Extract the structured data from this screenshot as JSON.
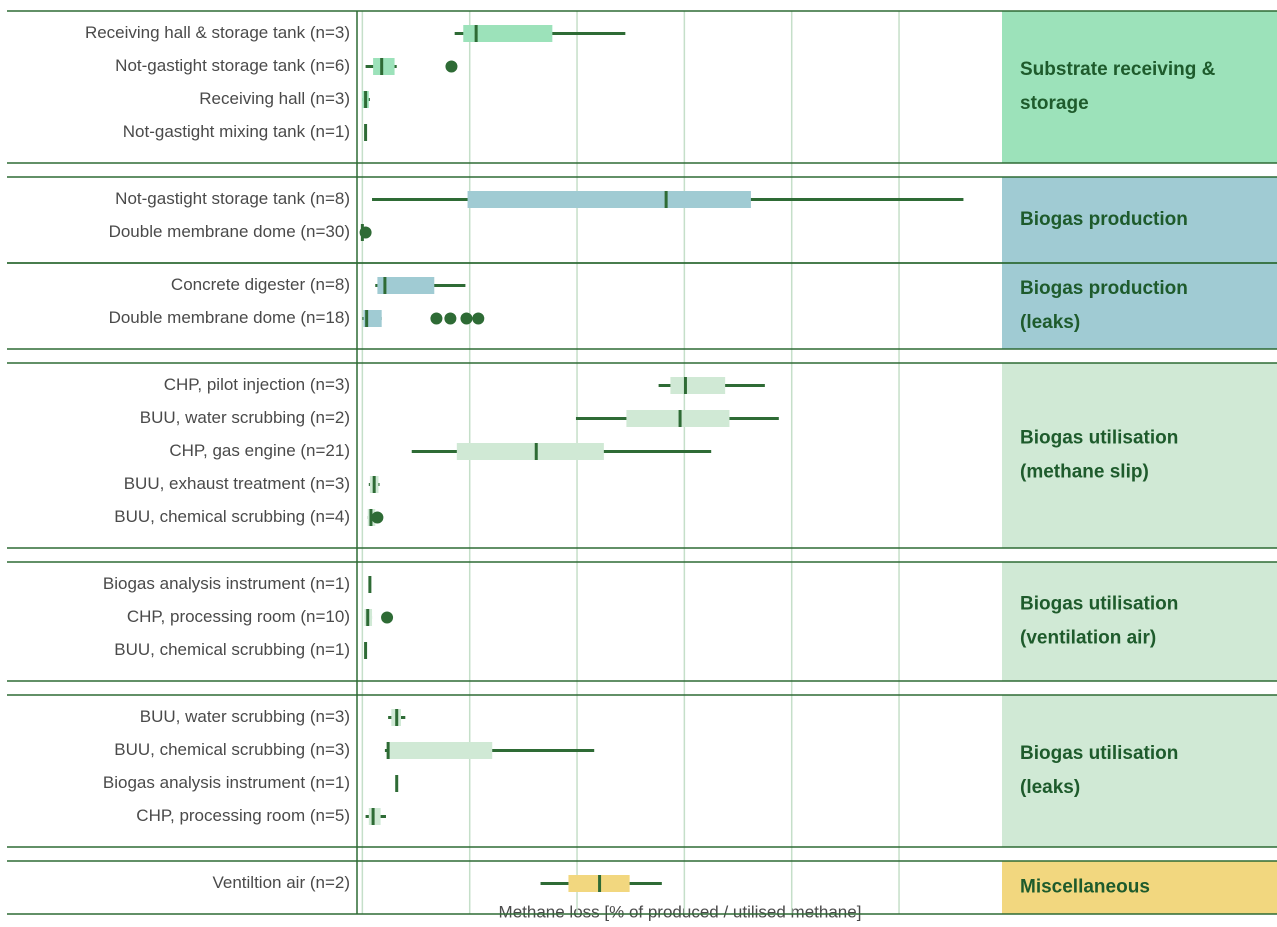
{
  "chart_data": {
    "type": "box",
    "xlabel": "Methane loss [% of produced / utilised methane]",
    "xlim": [
      -0.05,
      5.95
    ],
    "xticks": [
      0,
      1,
      2,
      3,
      4,
      5
    ],
    "grid": true,
    "line_color": "#2e6b35",
    "groups": [
      {
        "label_lines": [
          "Substrate receiving &",
          "storage"
        ],
        "color": "#9ce2ba",
        "rows": [
          {
            "label": "Receiving hall & storage tank (n=3)",
            "stats": [
              0.86,
              0.94,
              1.06,
              1.77,
              2.45
            ],
            "fliers": []
          },
          {
            "label": "Not-gastight storage tank (n=6)",
            "stats": [
              0.03,
              0.1,
              0.18,
              0.3,
              0.32
            ],
            "fliers": [
              0.83
            ]
          },
          {
            "label": "Receiving hall (n=3)",
            "stats": [
              0,
              0,
              0.03,
              0.06,
              0.07
            ],
            "fliers": []
          },
          {
            "label": "Not-gastight mixing tank (n=1)",
            "stats": [
              0.03,
              0.03,
              0.03,
              0.03,
              0.03
            ],
            "fliers": []
          }
        ]
      },
      {
        "label_lines": [
          "Biogas production"
        ],
        "color": "#a0cbd3",
        "rows": [
          {
            "label": "Not-gastight storage tank (n=8)",
            "stats": [
              0.09,
              0.98,
              2.83,
              3.62,
              5.6
            ],
            "fliers": []
          },
          {
            "label": "Double membrane dome (n=30)",
            "stats": [
              0,
              0,
              0,
              0,
              0
            ],
            "fliers": [
              0.03
            ]
          }
        ]
      },
      {
        "label_lines": [
          "Biogas production",
          "(leaks)"
        ],
        "color": "#a0cbd3",
        "rows": [
          {
            "label": "Concrete digester (n=8)",
            "stats": [
              0.12,
              0.14,
              0.21,
              0.67,
              0.96
            ],
            "fliers": []
          },
          {
            "label": "Double membrane dome (n=18)",
            "stats": [
              0,
              0.01,
              0.04,
              0.18,
              0.18
            ],
            "fliers": [
              0.69,
              0.82,
              0.97,
              1.08
            ]
          }
        ]
      },
      {
        "label_lines": [
          "Biogas utilisation",
          "(methane slip)"
        ],
        "color": "#d0e9d5",
        "rows": [
          {
            "label": "CHP, pilot injection (n=3)",
            "stats": [
              2.76,
              2.87,
              3.01,
              3.38,
              3.75
            ],
            "fliers": []
          },
          {
            "label": "BUU, water scrubbing (n=2)",
            "stats": [
              1.99,
              2.46,
              2.96,
              3.42,
              3.88
            ],
            "fliers": []
          },
          {
            "label": "CHP, gas engine (n=21)",
            "stats": [
              0.46,
              0.88,
              1.62,
              2.25,
              3.25
            ],
            "fliers": []
          },
          {
            "label": "BUU, exhaust treatment (n=3)",
            "stats": [
              0.06,
              0.07,
              0.11,
              0.15,
              0.16
            ],
            "fliers": []
          },
          {
            "label": "BUU, chemical scrubbing (n=4)",
            "stats": [
              0.05,
              0.05,
              0.08,
              0.12,
              0.12
            ],
            "fliers": [
              0.14
            ]
          }
        ]
      },
      {
        "label_lines": [
          "Biogas utilisation",
          "(ventilation air)"
        ],
        "color": "#d0e9d5",
        "rows": [
          {
            "label": "Biogas analysis instrument (n=1)",
            "stats": [
              0.07,
              0.07,
              0.07,
              0.07,
              0.07
            ],
            "fliers": []
          },
          {
            "label": "CHP, processing room (n=10)",
            "stats": [
              0.02,
              0.02,
              0.05,
              0.09,
              0.09
            ],
            "fliers": [
              0.23
            ]
          },
          {
            "label": "BUU, chemical scrubbing (n=1)",
            "stats": [
              0.03,
              0.03,
              0.03,
              0.03,
              0.03
            ],
            "fliers": []
          }
        ]
      },
      {
        "label_lines": [
          "Biogas utilisation",
          "(leaks)"
        ],
        "color": "#d0e9d5",
        "rows": [
          {
            "label": "BUU, water scrubbing (n=3)",
            "stats": [
              0.24,
              0.27,
              0.32,
              0.36,
              0.4
            ],
            "fliers": []
          },
          {
            "label": "BUU, chemical scrubbing (n=3)",
            "stats": [
              0.21,
              0.23,
              0.24,
              1.21,
              2.16
            ],
            "fliers": []
          },
          {
            "label": "Biogas analysis instrument (n=1)",
            "stats": [
              0.32,
              0.32,
              0.32,
              0.32,
              0.32
            ],
            "fliers": []
          },
          {
            "label": "CHP, processing room (n=5)",
            "stats": [
              0.03,
              0.06,
              0.1,
              0.17,
              0.22
            ],
            "fliers": []
          }
        ]
      },
      {
        "label_lines": [
          "Miscellaneous"
        ],
        "color": "#f2d77f",
        "rows": [
          {
            "label": "Ventiltion air (n=2)",
            "stats": [
              1.66,
              1.92,
              2.21,
              2.49,
              2.79
            ],
            "fliers": []
          }
        ]
      }
    ]
  }
}
